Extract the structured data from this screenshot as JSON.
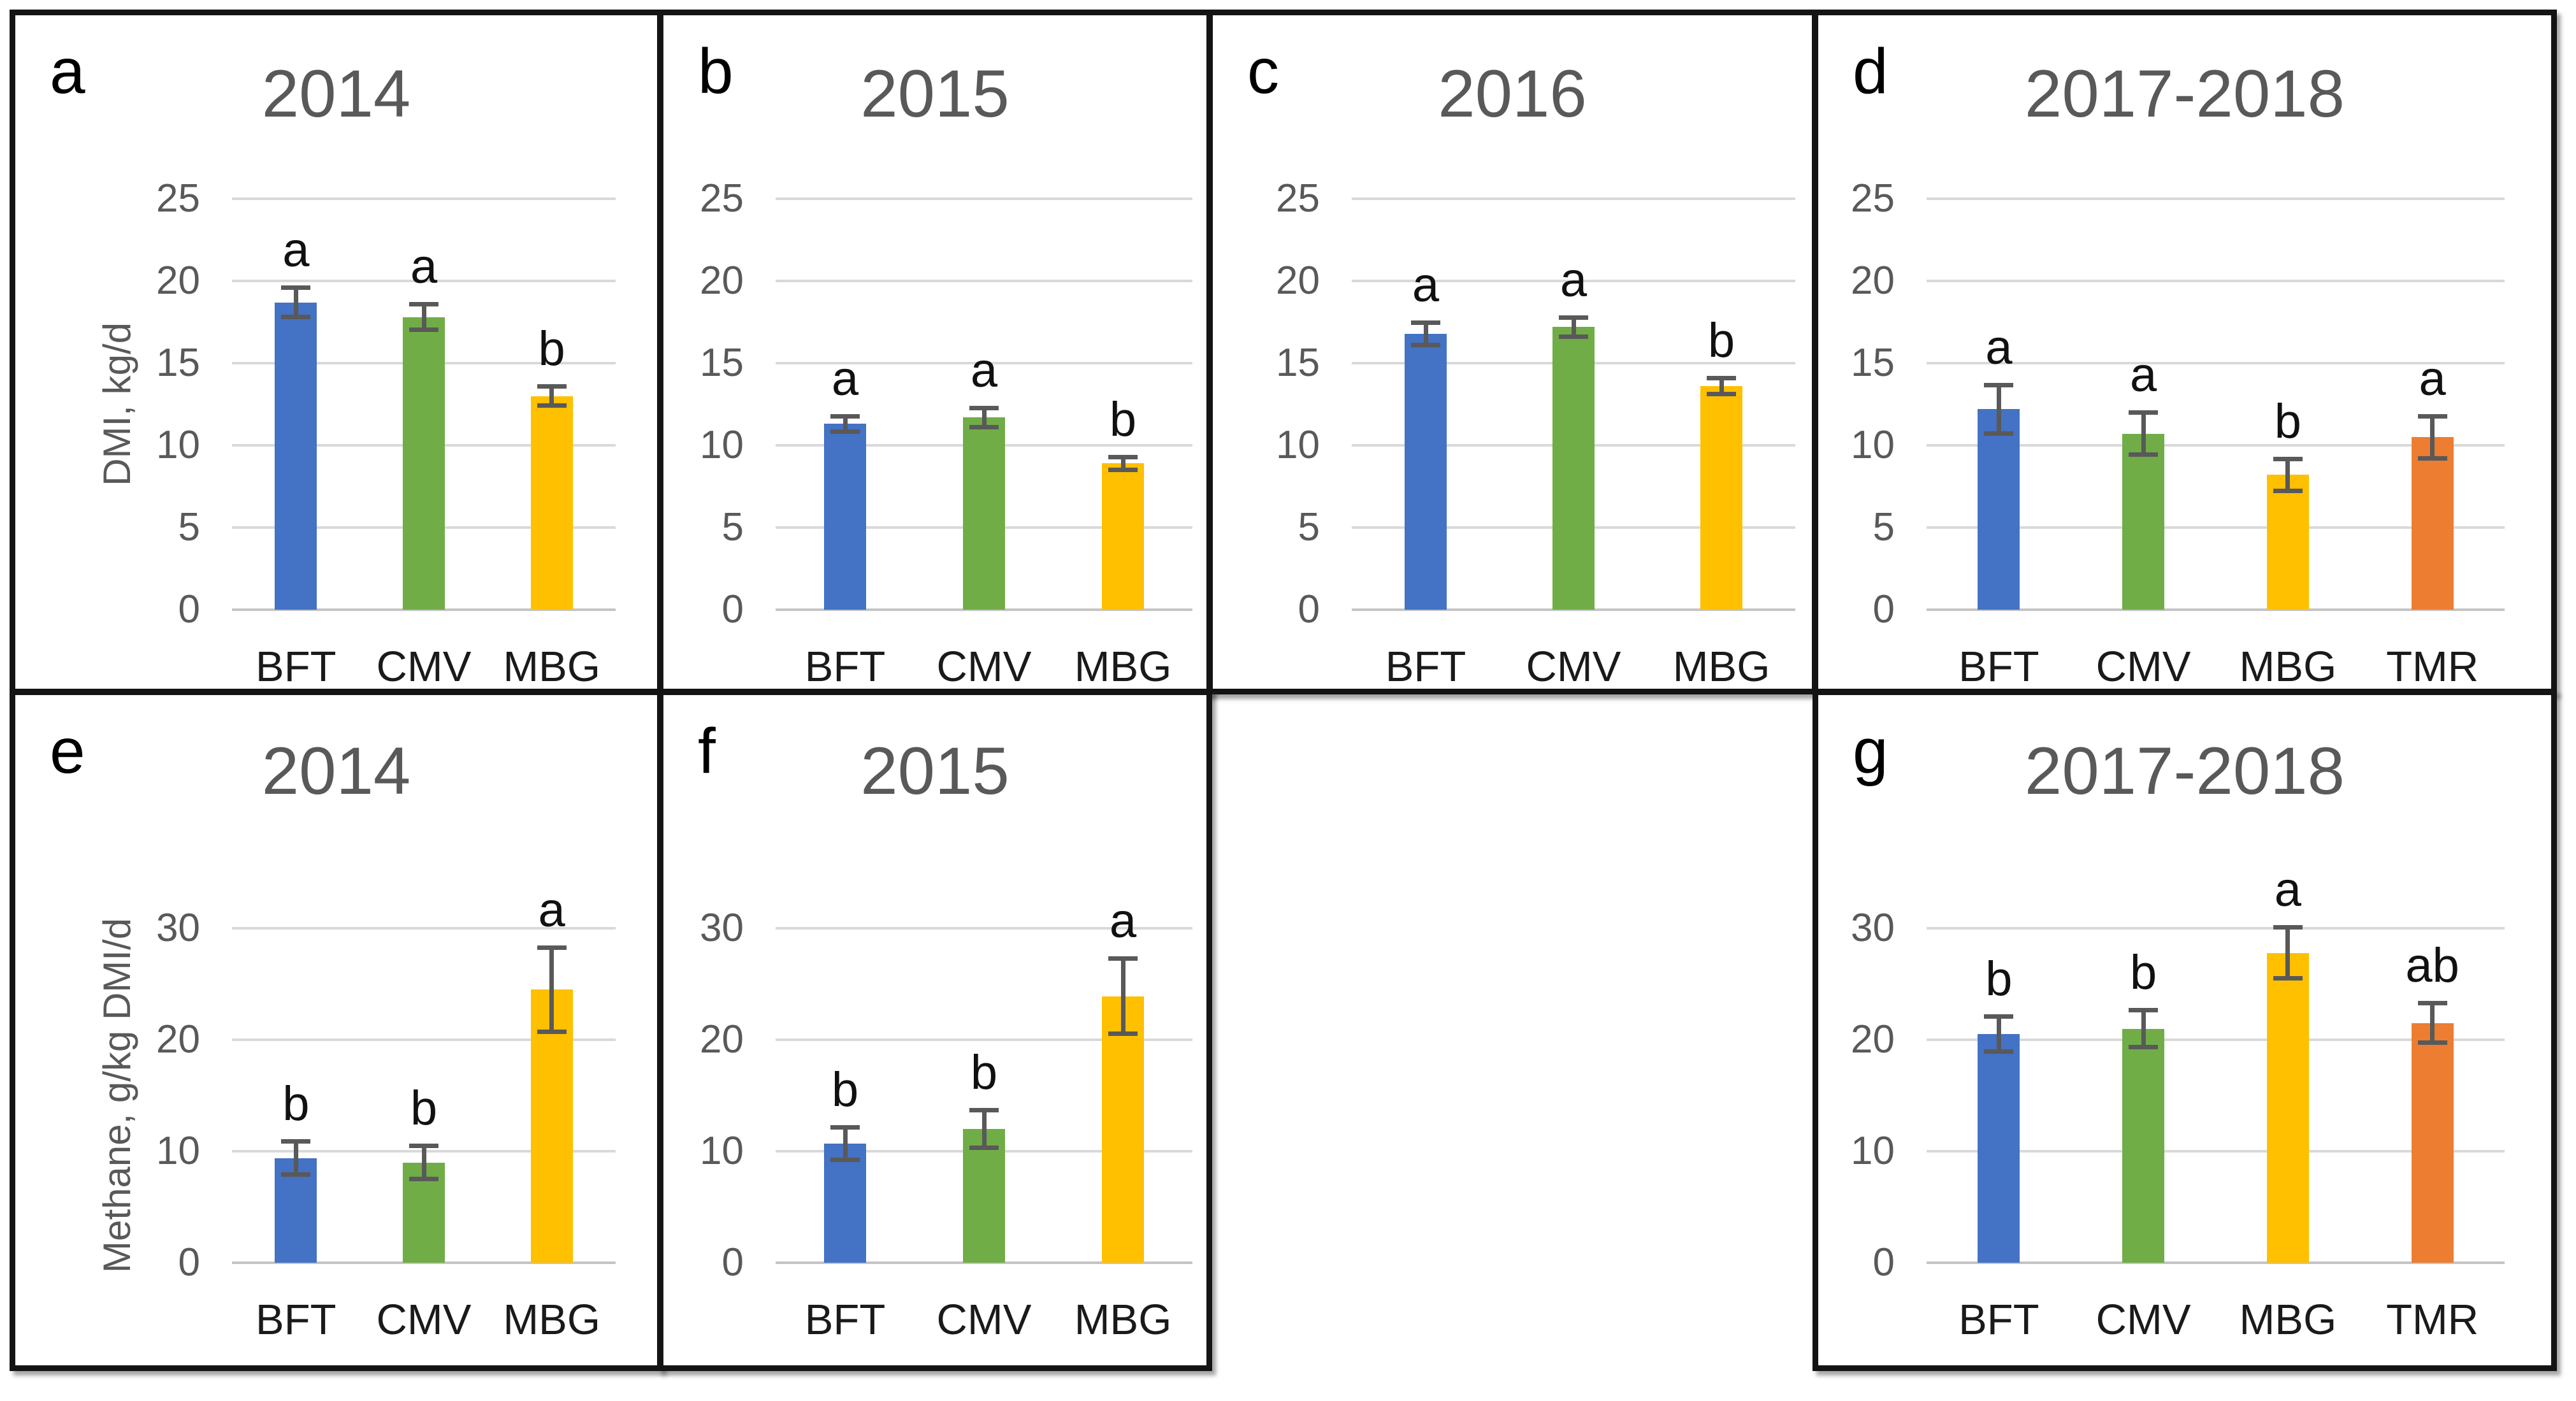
{
  "figure_caption": "",
  "treatment_colors": {
    "BFT": "#4472C4",
    "CMV": "#70AD47",
    "MBG": "#FFC000",
    "TMR": "#ED7D31"
  },
  "text_colors": {
    "title_gray": "#595959",
    "tick_gray": "#595959",
    "letter_black": "#000000"
  },
  "chart_data": [
    {
      "panel": "a",
      "type": "bar",
      "title": "2014",
      "ylabel": "DMI, kg/d",
      "ylim": [
        0,
        25
      ],
      "yticks": [
        0,
        5,
        10,
        15,
        20,
        25
      ],
      "ytick_labels": [
        "25",
        "20",
        "15",
        "10",
        "5",
        "0"
      ],
      "grid": true,
      "legend": false,
      "categories": [
        "BFT",
        "CMV",
        "MBG"
      ],
      "values": [
        18.7,
        17.8,
        13.0
      ],
      "errors": [
        0.9,
        0.8,
        0.6
      ],
      "sig_letters": [
        "a",
        "a",
        "b"
      ],
      "bar_colors": [
        "#4472C4",
        "#70AD47",
        "#FFC000"
      ]
    },
    {
      "panel": "b",
      "type": "bar",
      "title": "2015",
      "ylabel": "",
      "ylim": [
        0,
        25
      ],
      "yticks": [
        0,
        5,
        10,
        15,
        20,
        25
      ],
      "ytick_labels": [
        "25",
        "20",
        "15",
        "10",
        "5",
        "0"
      ],
      "grid": true,
      "legend": false,
      "categories": [
        "BFT",
        "CMV",
        "MBG"
      ],
      "values": [
        11.3,
        11.7,
        8.9
      ],
      "errors": [
        0.5,
        0.6,
        0.4
      ],
      "sig_letters": [
        "a",
        "a",
        "b"
      ],
      "bar_colors": [
        "#4472C4",
        "#70AD47",
        "#FFC000"
      ]
    },
    {
      "panel": "c",
      "type": "bar",
      "title": "2016",
      "ylabel": "",
      "ylim": [
        0,
        25
      ],
      "yticks": [
        0,
        5,
        10,
        15,
        20,
        25
      ],
      "ytick_labels": [
        "25",
        "20",
        "15",
        "10",
        "5",
        "0"
      ],
      "grid": true,
      "legend": false,
      "categories": [
        "BFT",
        "CMV",
        "MBG"
      ],
      "values": [
        16.8,
        17.2,
        13.6
      ],
      "errors": [
        0.7,
        0.6,
        0.5
      ],
      "sig_letters": [
        "a",
        "a",
        "b"
      ],
      "bar_colors": [
        "#4472C4",
        "#70AD47",
        "#FFC000"
      ]
    },
    {
      "panel": "d",
      "type": "bar",
      "title": "2017-2018",
      "ylabel": "",
      "ylim": [
        0,
        25
      ],
      "yticks": [
        0,
        5,
        10,
        15,
        20,
        25
      ],
      "ytick_labels": [
        "25",
        "20",
        "15",
        "10",
        "5",
        "0"
      ],
      "grid": true,
      "legend": false,
      "categories": [
        "BFT",
        "CMV",
        "MBG",
        "TMR"
      ],
      "values": [
        12.2,
        10.7,
        8.2,
        10.5
      ],
      "errors": [
        1.5,
        1.3,
        1.0,
        1.3
      ],
      "sig_letters": [
        "a",
        "a",
        "b",
        "a"
      ],
      "bar_colors": [
        "#4472C4",
        "#70AD47",
        "#FFC000",
        "#ED7D31"
      ]
    },
    {
      "panel": "e",
      "type": "bar",
      "title": "2014",
      "ylabel": "Methane, g/kg DMI/d",
      "ylim": [
        0,
        30
      ],
      "yticks": [
        0,
        10,
        20,
        30
      ],
      "ytick_labels": [
        "30",
        "20",
        "10",
        "0"
      ],
      "grid": true,
      "legend": false,
      "categories": [
        "BFT",
        "CMV",
        "MBG"
      ],
      "values": [
        9.4,
        9.0,
        24.5
      ],
      "errors": [
        1.5,
        1.5,
        3.8
      ],
      "sig_letters": [
        "b",
        "b",
        "a"
      ],
      "bar_colors": [
        "#4472C4",
        "#70AD47",
        "#FFC000"
      ]
    },
    {
      "panel": "f",
      "type": "bar",
      "title": "2015",
      "ylabel": "",
      "ylim": [
        0,
        30
      ],
      "yticks": [
        0,
        10,
        20,
        30
      ],
      "ytick_labels": [
        "30",
        "20",
        "10",
        "0"
      ],
      "grid": true,
      "legend": false,
      "categories": [
        "BFT",
        "CMV",
        "MBG"
      ],
      "values": [
        10.7,
        12.0,
        23.9
      ],
      "errors": [
        1.5,
        1.7,
        3.4
      ],
      "sig_letters": [
        "b",
        "b",
        "a"
      ],
      "bar_colors": [
        "#4472C4",
        "#70AD47",
        "#FFC000"
      ]
    },
    {
      "panel": "g",
      "type": "bar",
      "title": "2017-2018",
      "ylabel": "",
      "ylim": [
        0,
        30
      ],
      "yticks": [
        0,
        10,
        20,
        30
      ],
      "ytick_labels": [
        "30",
        "20",
        "10",
        "0"
      ],
      "grid": true,
      "legend": false,
      "categories": [
        "BFT",
        "CMV",
        "MBG",
        "TMR"
      ],
      "values": [
        20.5,
        21.0,
        27.8,
        21.5
      ],
      "errors": [
        1.6,
        1.7,
        2.3,
        1.8
      ],
      "sig_letters": [
        "b",
        "b",
        "a",
        "ab"
      ],
      "bar_colors": [
        "#4472C4",
        "#70AD47",
        "#FFC000",
        "#ED7D31"
      ]
    }
  ]
}
